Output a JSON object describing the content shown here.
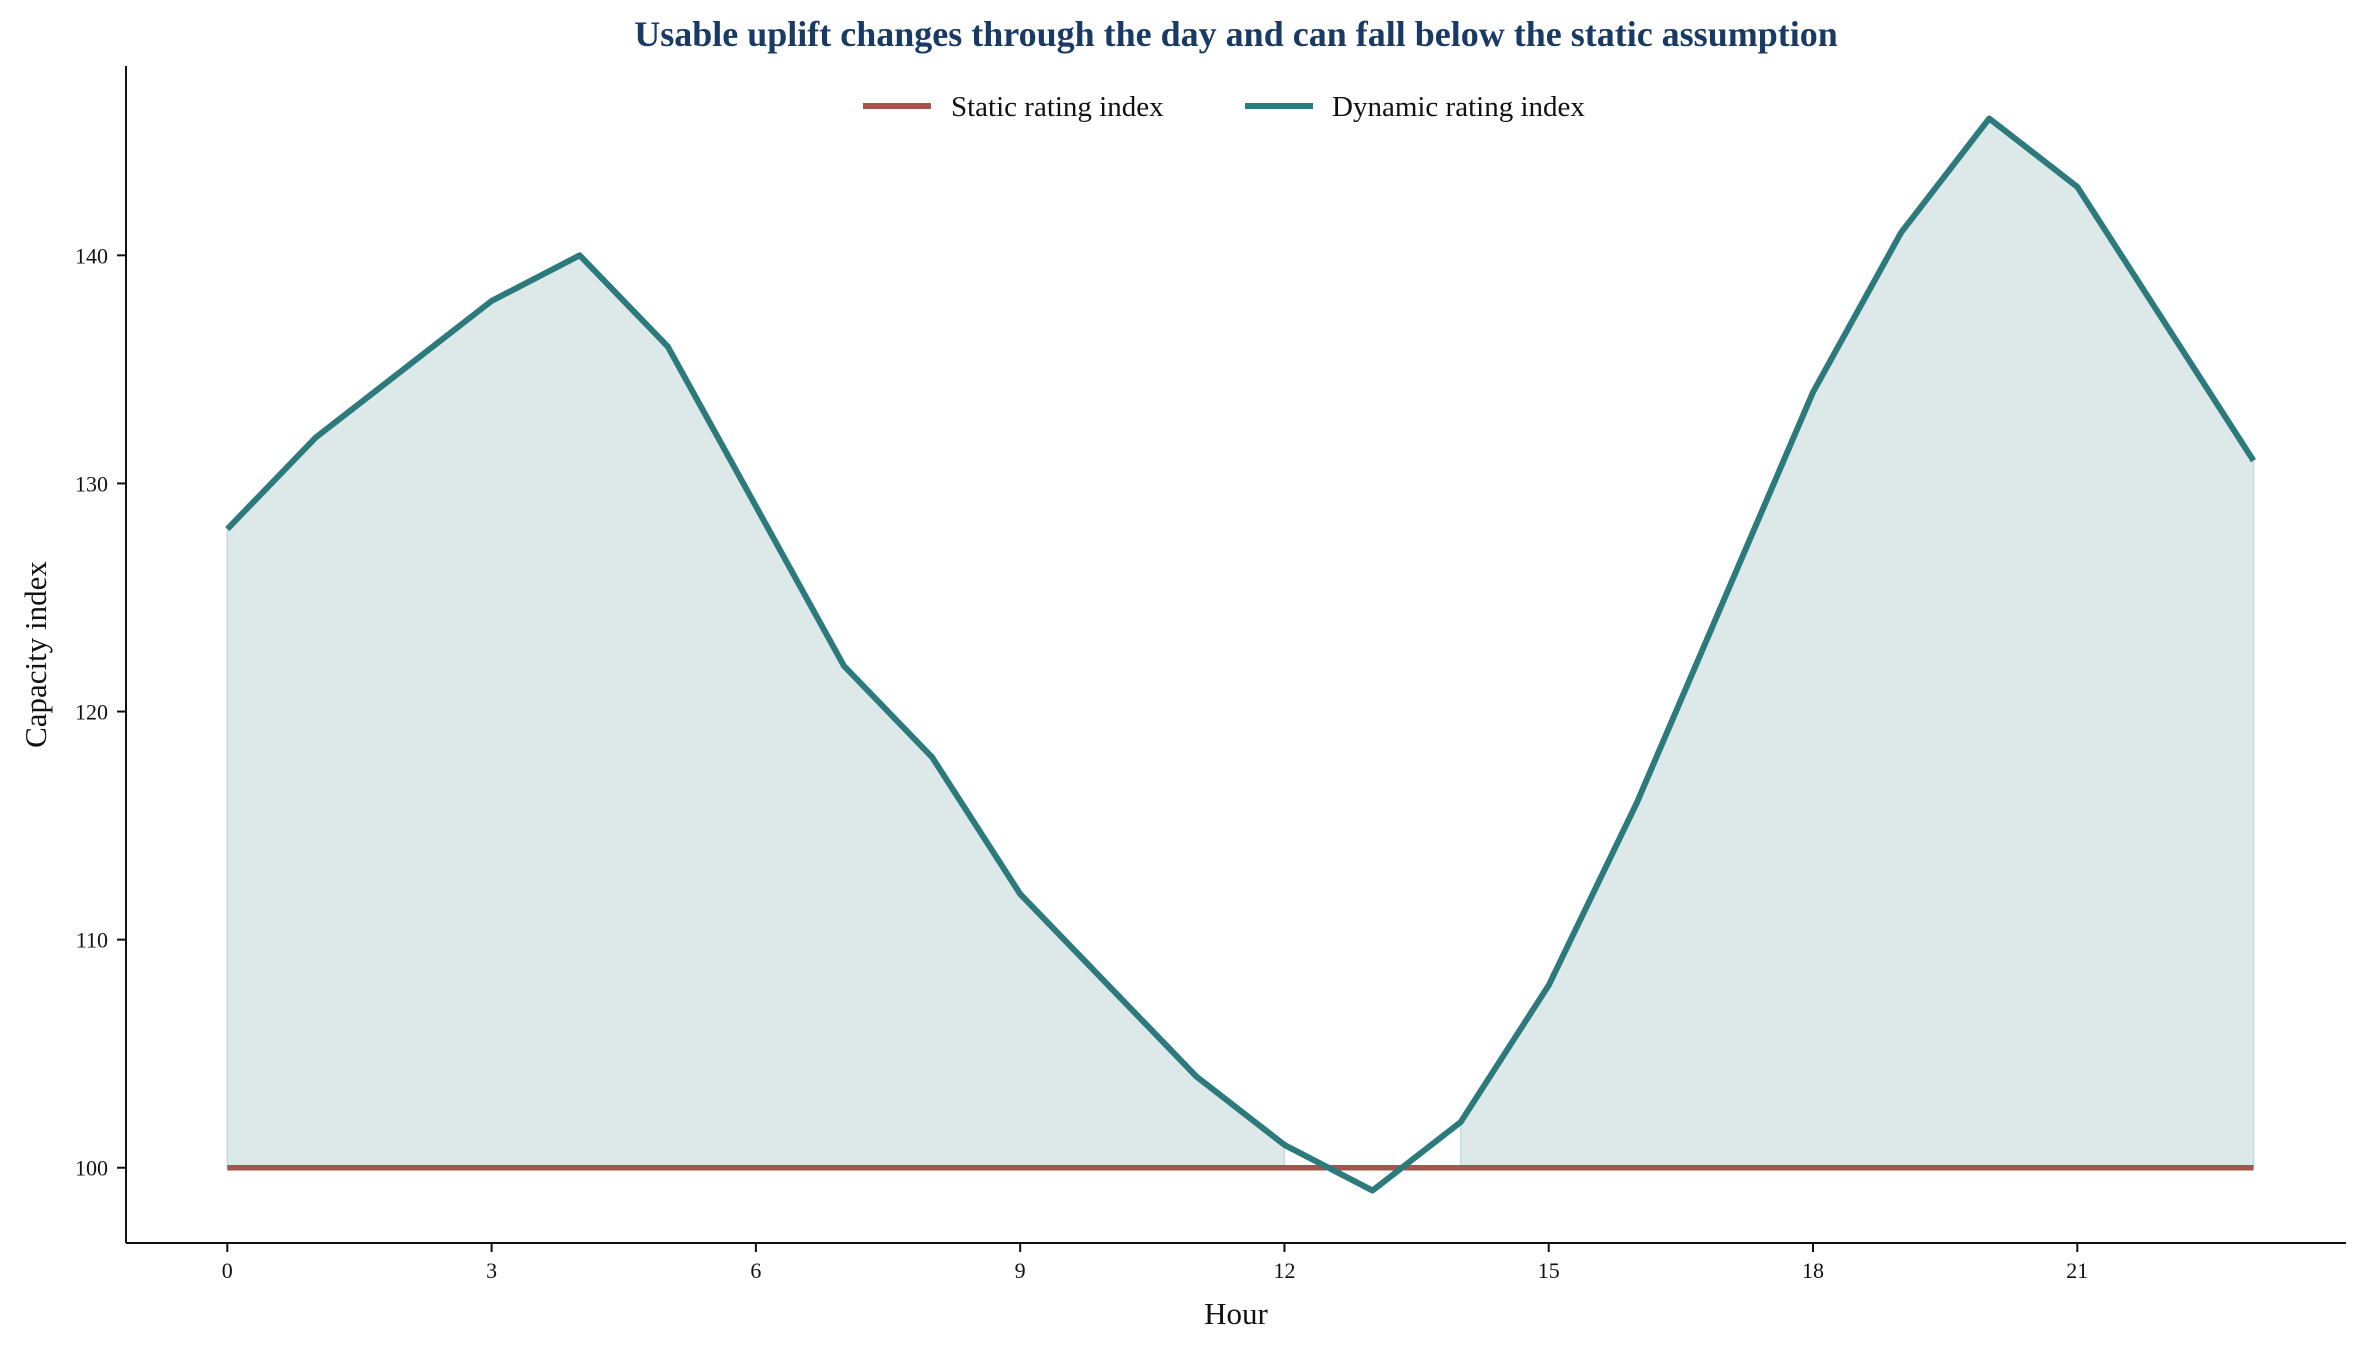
{
  "chart_data": {
    "type": "line",
    "title": "Usable uplift changes through the day and can fall below the static assumption",
    "xlabel": "Hour",
    "ylabel": "Capacity index",
    "x": [
      0,
      1,
      2,
      3,
      4,
      5,
      6,
      7,
      8,
      9,
      10,
      11,
      12,
      13,
      14,
      15,
      16,
      17,
      18,
      19,
      20,
      21,
      22,
      23
    ],
    "xticks": [
      0,
      3,
      6,
      9,
      12,
      15,
      18,
      21
    ],
    "yticks": [
      100,
      110,
      120,
      130,
      140
    ],
    "xlim": [
      -1.15,
      24.05
    ],
    "ylim": [
      96.7,
      148.3
    ],
    "grid": false,
    "legend_position": "top-center",
    "fill_between": "area between dynamic and static where dynamic exceeds static",
    "series": [
      {
        "name": "Static rating index",
        "color": "#a0564a",
        "values": [
          100,
          100,
          100,
          100,
          100,
          100,
          100,
          100,
          100,
          100,
          100,
          100,
          100,
          100,
          100,
          100,
          100,
          100,
          100,
          100,
          100,
          100,
          100,
          100
        ]
      },
      {
        "name": "Dynamic rating index",
        "color": "#2c7a7b",
        "values": [
          128,
          132,
          135,
          138,
          140,
          136,
          129,
          122,
          118,
          112,
          108,
          104,
          101,
          99,
          102,
          108,
          116,
          125,
          134,
          141,
          146,
          143,
          137,
          131
        ]
      }
    ],
    "colors": {
      "title": "#1a3a66",
      "fill": "#dde9e9",
      "axis": "#111111"
    }
  }
}
